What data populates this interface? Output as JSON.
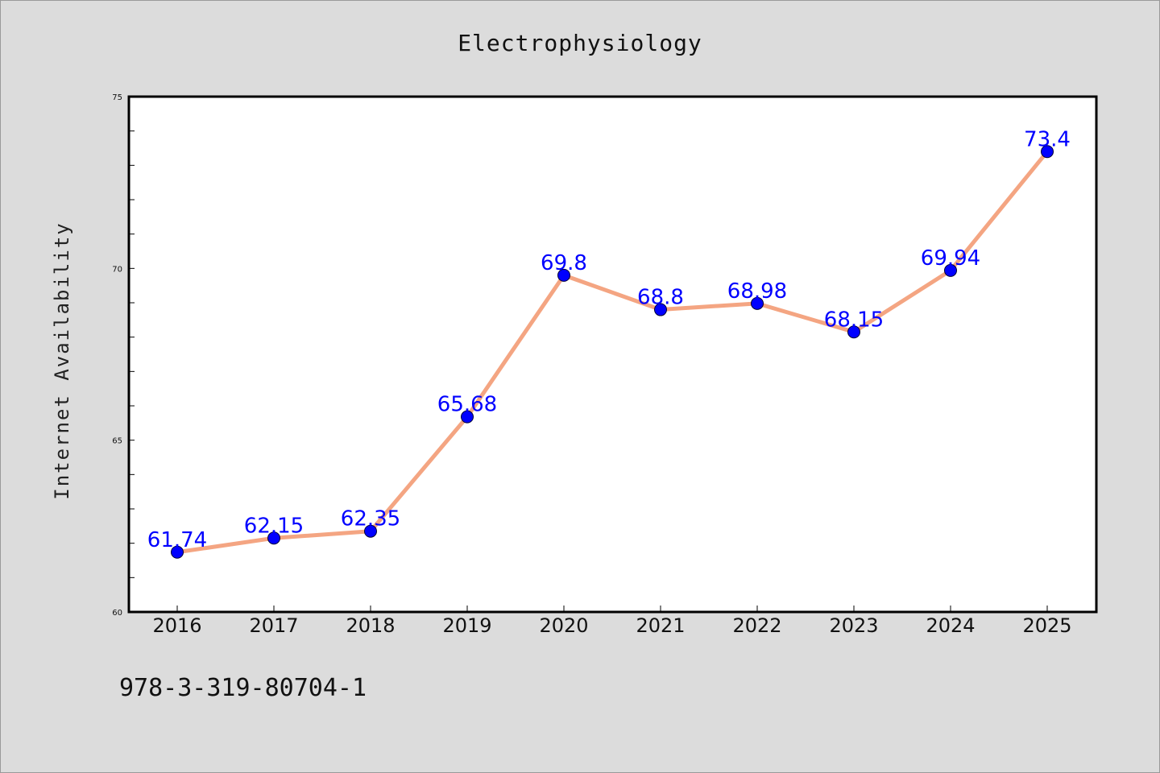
{
  "chart_data": {
    "type": "line",
    "title": "Electrophysiology",
    "xlabel": "",
    "ylabel": "Internet Availability",
    "categories": [
      "2016",
      "2017",
      "2018",
      "2019",
      "2020",
      "2021",
      "2022",
      "2023",
      "2024",
      "2025"
    ],
    "series": [
      {
        "values": [
          61.74,
          62.15,
          62.35,
          65.68,
          69.8,
          68.8,
          68.98,
          68.15,
          69.94,
          73.4
        ],
        "labels": [
          "61.74",
          "62.15",
          "62.35",
          "65.68",
          "69.8",
          "68.8",
          "68.98",
          "68.15",
          "69.94",
          "73.4"
        ],
        "line_color": "#f4a582",
        "marker_color": "#0000ff",
        "label_color": "#0000ff"
      }
    ],
    "ylim": [
      60,
      75
    ],
    "yticks": [
      "60",
      "65",
      "70",
      "75"
    ],
    "grid": false,
    "legend": "none"
  },
  "footer_text": "978-3-319-80704-1",
  "colors": {
    "background": "#dcdcdc",
    "plot_background": "#ffffff"
  }
}
